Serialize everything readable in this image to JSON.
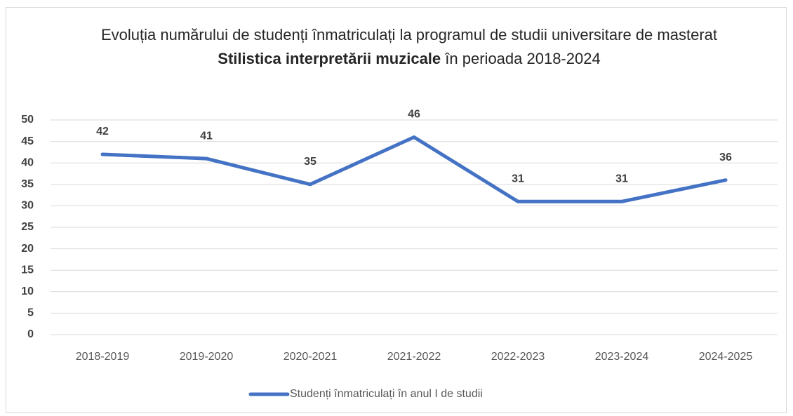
{
  "chart_data": {
    "type": "line",
    "title": [
      "Evoluția numărului de studenți înmatriculați la programul de studii universitare de masterat",
      "Stilistica interpretării muzicale",
      "în perioada 2018-2024"
    ],
    "categories": [
      "2018-2019",
      "2019-2020",
      "2020-2021",
      "2021-2022",
      "2022-2023",
      "2023-2024",
      "2024-2025"
    ],
    "series": [
      {
        "name": "Studenți înmatriculați în anul I de studii",
        "color": "#4472c4",
        "values": [
          42,
          41,
          35,
          46,
          31,
          31,
          36
        ]
      }
    ],
    "ylim": [
      0,
      50
    ],
    "yticks": [
      0,
      5,
      10,
      15,
      20,
      25,
      30,
      35,
      40,
      45,
      50
    ],
    "grid": true,
    "legend": "bottom"
  }
}
